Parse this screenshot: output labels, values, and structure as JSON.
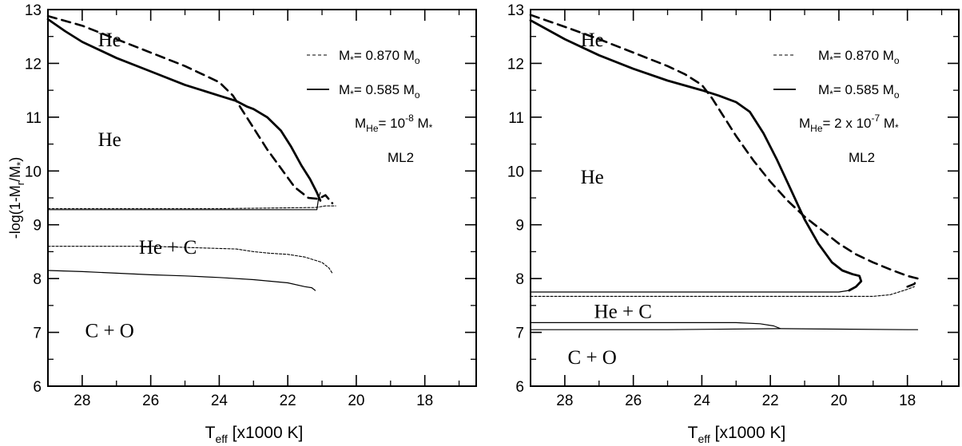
{
  "chart_data": [
    {
      "type": "line",
      "panel": "left",
      "xlabel": "T",
      "xlabel_sub": "eff",
      "xlabel_rest": " [x1000 K]",
      "ylabel": "-log(1-M",
      "ylabel_sub": "r",
      "ylabel_rest": "/M",
      "ylabel_sub2": "*",
      "ylabel_close": ")",
      "xlim": [
        29,
        16.5
      ],
      "ylim": [
        6,
        13
      ],
      "x_reversed": true,
      "x_ticks": [
        28,
        26,
        24,
        22,
        20,
        18
      ],
      "y_ticks": [
        6,
        7,
        8,
        9,
        10,
        11,
        12,
        13
      ],
      "legend": {
        "position": "top-right",
        "entries": [
          {
            "style": "dashed",
            "label": "M",
            "sub": "*",
            "rest": "= 0.870 M",
            "sub2": "o"
          },
          {
            "style": "solid",
            "label": "M",
            "sub": "*",
            "rest": "= 0.585 M",
            "sub2": "o"
          }
        ],
        "mhe": {
          "pre": "M",
          "sub": "He",
          "mid": "= 10",
          "sup": "-8",
          "post": " M",
          "sub2": "*"
        },
        "model": "ML2"
      },
      "region_labels": [
        {
          "text": "He",
          "x": 27.2,
          "y": 12.4
        },
        {
          "text": "He",
          "x": 27.2,
          "y": 10.55
        },
        {
          "text": "He + C",
          "x": 25.5,
          "y": 8.55
        },
        {
          "text": "C + O",
          "x": 27.2,
          "y": 7.0
        }
      ],
      "series": [
        {
          "style": "thick-solid",
          "x": [
            29.0,
            28.5,
            28.0,
            27.0,
            26.0,
            25.0,
            24.0,
            23.5,
            23.2,
            23.0,
            22.6,
            22.2,
            21.9,
            21.6,
            21.35,
            21.15,
            21.05
          ],
          "y": [
            12.82,
            12.6,
            12.4,
            12.1,
            11.85,
            11.6,
            11.4,
            11.3,
            11.2,
            11.15,
            11.0,
            10.75,
            10.45,
            10.1,
            9.85,
            9.6,
            9.45
          ]
        },
        {
          "style": "thick-dashed",
          "x": [
            29.0,
            28.0,
            27.0,
            26.0,
            25.0,
            24.5,
            24.0,
            23.6,
            23.3,
            23.0,
            22.6,
            22.2,
            21.8,
            21.4,
            21.1,
            20.9,
            20.7
          ],
          "y": [
            12.88,
            12.7,
            12.45,
            12.2,
            11.95,
            11.8,
            11.65,
            11.4,
            11.1,
            10.8,
            10.4,
            10.05,
            9.7,
            9.5,
            9.48,
            9.55,
            9.4
          ]
        },
        {
          "style": "thin-solid",
          "x": [
            29.0,
            24.0,
            21.15,
            21.1,
            21.05
          ],
          "y": [
            9.28,
            9.28,
            9.28,
            9.5,
            9.6
          ]
        },
        {
          "style": "thin-dashed",
          "x": [
            29.0,
            24.0,
            21.2,
            20.9,
            20.6
          ],
          "y": [
            9.3,
            9.3,
            9.32,
            9.35,
            9.35
          ]
        },
        {
          "style": "thin-solid",
          "x": [
            29.0,
            28.0,
            27.0,
            26.0,
            25.0,
            24.0,
            23.0,
            22.0,
            21.5,
            21.3,
            21.2
          ],
          "y": [
            8.15,
            8.13,
            8.1,
            8.07,
            8.05,
            8.02,
            7.98,
            7.92,
            7.85,
            7.83,
            7.78
          ]
        },
        {
          "style": "thin-dashed",
          "x": [
            29.0,
            27.0,
            26.0,
            23.5,
            23.0,
            22.5,
            22.0,
            21.5,
            21.0,
            20.8,
            20.7
          ],
          "y": [
            8.6,
            8.6,
            8.6,
            8.55,
            8.5,
            8.47,
            8.45,
            8.4,
            8.3,
            8.2,
            8.1
          ]
        }
      ]
    },
    {
      "type": "line",
      "panel": "right",
      "xlabel": "T",
      "xlabel_sub": "eff",
      "xlabel_rest": " [x1000 K]",
      "xlim": [
        29,
        16.5
      ],
      "ylim": [
        6,
        13
      ],
      "x_reversed": true,
      "x_ticks": [
        28,
        26,
        24,
        22,
        20,
        18
      ],
      "y_ticks": [
        6,
        7,
        8,
        9,
        10,
        11,
        12,
        13
      ],
      "legend": {
        "position": "top-right",
        "entries": [
          {
            "style": "dashed",
            "label": "M",
            "sub": "*",
            "rest": "= 0.870 M",
            "sub2": "o"
          },
          {
            "style": "solid",
            "label": "M",
            "sub": "*",
            "rest": "= 0.585 M",
            "sub2": "o"
          }
        ],
        "mhe": {
          "pre": "M",
          "sub": "He",
          "mid": "= 2 x 10",
          "sup": "-7",
          "post": " M",
          "sub2": "*"
        },
        "model": "ML2"
      },
      "region_labels": [
        {
          "text": "He",
          "x": 27.2,
          "y": 12.4
        },
        {
          "text": "He",
          "x": 27.2,
          "y": 9.85
        },
        {
          "text": "He + C",
          "x": 26.3,
          "y": 7.35
        },
        {
          "text": "C + O",
          "x": 27.2,
          "y": 6.5
        }
      ],
      "series": [
        {
          "style": "thick-solid",
          "x": [
            29.0,
            28.0,
            27.0,
            26.0,
            25.0,
            24.0,
            23.5,
            23.0,
            22.6,
            22.2,
            21.8,
            21.4,
            21.0,
            20.6,
            20.2,
            19.9,
            19.6,
            19.4,
            19.35,
            19.5,
            19.7
          ],
          "y": [
            12.8,
            12.45,
            12.15,
            11.9,
            11.68,
            11.5,
            11.4,
            11.28,
            11.1,
            10.7,
            10.2,
            9.65,
            9.1,
            8.65,
            8.3,
            8.15,
            8.08,
            8.05,
            7.95,
            7.85,
            7.78
          ]
        },
        {
          "style": "thick-dashed",
          "x": [
            29.0,
            28.0,
            27.0,
            26.0,
            25.0,
            24.5,
            24.0,
            23.7,
            23.4,
            23.0,
            22.5,
            22.0,
            21.5,
            21.0,
            20.5,
            20.0,
            19.5,
            19.0,
            18.5,
            18.0,
            17.7,
            17.8,
            18.0
          ],
          "y": [
            12.9,
            12.68,
            12.45,
            12.2,
            11.95,
            11.8,
            11.6,
            11.35,
            11.05,
            10.65,
            10.2,
            9.8,
            9.45,
            9.15,
            8.9,
            8.65,
            8.45,
            8.3,
            8.17,
            8.05,
            8.0,
            7.9,
            7.85
          ]
        },
        {
          "style": "thin-solid",
          "x": [
            29.0,
            24.0,
            20.0,
            19.7
          ],
          "y": [
            7.75,
            7.75,
            7.75,
            7.78
          ]
        },
        {
          "style": "thin-dashed",
          "x": [
            29.0,
            24.0,
            19.0,
            18.5,
            18.0,
            17.8
          ],
          "y": [
            7.67,
            7.67,
            7.67,
            7.7,
            7.8,
            7.85
          ]
        },
        {
          "style": "thin-solid",
          "x": [
            29.0,
            23.0,
            22.3,
            21.9,
            21.7
          ],
          "y": [
            7.18,
            7.18,
            7.16,
            7.12,
            7.07
          ]
        },
        {
          "style": "thin-solid",
          "x": [
            29.0,
            25.0,
            21.7,
            20.0,
            18.0,
            17.7
          ],
          "y": [
            7.05,
            7.05,
            7.07,
            7.06,
            7.05,
            7.05
          ]
        }
      ]
    }
  ]
}
